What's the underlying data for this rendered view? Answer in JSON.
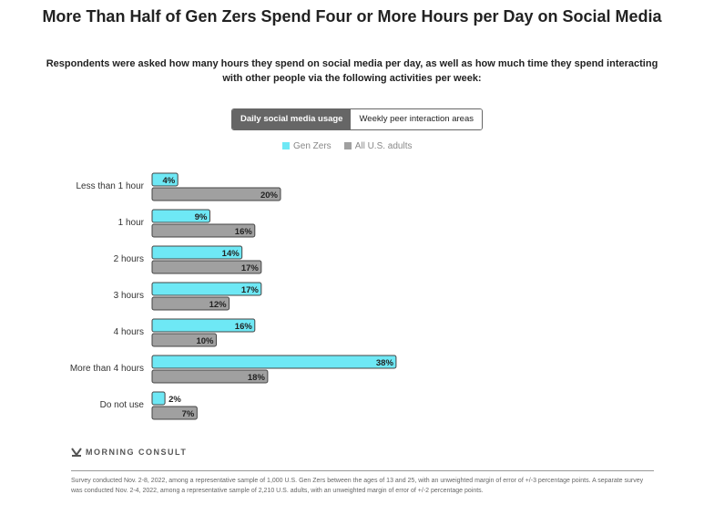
{
  "title": "More Than Half of Gen Zers Spend Four or More Hours per Day on Social Media",
  "subtitle": "Respondents were asked how many hours they spend on social media per day, as well as how much time they spend interacting with other people via the following activities per week:",
  "tabs": [
    {
      "label": "Daily social media usage",
      "active": true
    },
    {
      "label": "Weekly peer interaction areas",
      "active": false
    }
  ],
  "brand": "MORNING CONSULT",
  "note": "Survey conducted Nov. 2-8, 2022, among a representative sample of 1,000 U.S. Gen Zers between the ages of 13 and 25, with an unweighted margin of error of +/-3 percentage points. A separate survey was conducted Nov. 2-4, 2022, among a representative sample of 2,210 U.S. adults, with an unweighted margin of error of +/-2 percentage points.",
  "chart_data": {
    "type": "bar",
    "orientation": "horizontal",
    "categories": [
      "Less than 1 hour",
      "1 hour",
      "2 hours",
      "3 hours",
      "4 hours",
      "More than 4 hours",
      "Do not use"
    ],
    "series": [
      {
        "name": "Gen Zers",
        "color": "#6ee8f5",
        "values": [
          4,
          9,
          14,
          17,
          16,
          38,
          2
        ]
      },
      {
        "name": "All U.S. adults",
        "color": "#a0a0a0",
        "values": [
          20,
          16,
          17,
          12,
          10,
          18,
          7
        ]
      }
    ],
    "unit": "%",
    "legend": "top",
    "grid": false
  }
}
